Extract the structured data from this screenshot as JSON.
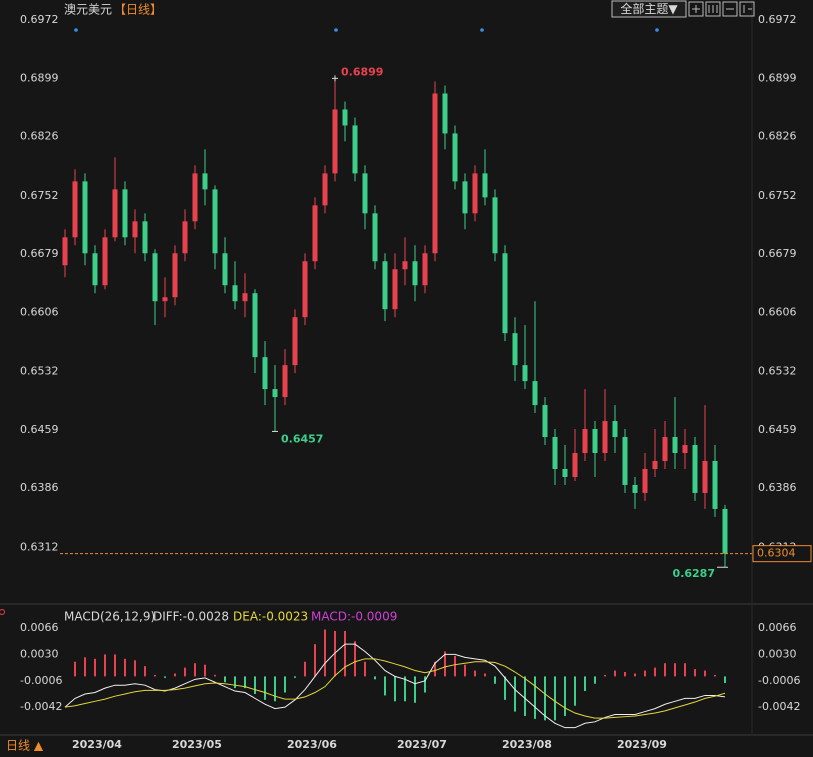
{
  "chart_data": [
    {
      "type": "candlestick",
      "title": "澳元美元",
      "period": "【日线】",
      "theme_button": "全部主题▼",
      "up_color": "#e8424f",
      "down_color": "#3ccf8a",
      "ylim": [
        0.6246,
        0.6972
      ],
      "yticks": [
        0.6972,
        0.6899,
        0.6826,
        {
          "value": 0.6752,
          "label": "0.6752"
        },
        0.6679,
        0.6606,
        0.6532,
        0.6459,
        0.6386,
        0.6312
      ],
      "candles": [
        [
          0.6665,
          0.671,
          0.665,
          0.67
        ],
        [
          0.67,
          0.6785,
          0.669,
          0.677
        ],
        [
          0.677,
          0.678,
          0.6665,
          0.668
        ],
        [
          0.668,
          0.669,
          0.663,
          0.664
        ],
        [
          0.664,
          0.671,
          0.6635,
          0.67
        ],
        [
          0.67,
          0.68,
          0.6695,
          0.676
        ],
        [
          0.676,
          0.677,
          0.669,
          0.67
        ],
        [
          0.67,
          0.6735,
          0.668,
          0.672
        ],
        [
          0.672,
          0.673,
          0.667,
          0.668
        ],
        [
          0.668,
          0.6685,
          0.659,
          0.662
        ],
        [
          0.662,
          0.665,
          0.66,
          0.6625
        ],
        [
          0.6625,
          0.669,
          0.6615,
          0.668
        ],
        [
          0.668,
          0.6735,
          0.667,
          0.672
        ],
        [
          0.672,
          0.679,
          0.671,
          0.678
        ],
        [
          0.678,
          0.681,
          0.674,
          0.676
        ],
        [
          0.676,
          0.6765,
          0.666,
          0.668
        ],
        [
          0.668,
          0.67,
          0.663,
          0.664
        ],
        [
          0.664,
          0.667,
          0.661,
          0.662
        ],
        [
          0.662,
          0.6655,
          0.66,
          0.663
        ],
        [
          0.663,
          0.6635,
          0.653,
          0.655
        ],
        [
          0.655,
          0.657,
          0.649,
          0.651
        ],
        [
          0.651,
          0.654,
          0.6457,
          0.65
        ],
        [
          0.65,
          0.656,
          0.649,
          0.654
        ],
        [
          0.654,
          0.661,
          0.653,
          0.66
        ],
        [
          0.66,
          0.668,
          0.659,
          0.667
        ],
        [
          0.667,
          0.675,
          0.666,
          0.674
        ],
        [
          0.674,
          0.679,
          0.673,
          0.678
        ],
        [
          0.678,
          0.6899,
          0.677,
          0.686
        ],
        [
          0.686,
          0.687,
          0.682,
          0.684
        ],
        [
          0.684,
          0.685,
          0.677,
          0.678
        ],
        [
          0.678,
          0.679,
          0.671,
          0.673
        ],
        [
          0.673,
          0.674,
          0.666,
          0.667
        ],
        [
          0.667,
          0.668,
          0.6595,
          0.661
        ],
        [
          0.661,
          0.668,
          0.66,
          0.666
        ],
        [
          0.666,
          0.67,
          0.664,
          0.667
        ],
        [
          0.667,
          0.669,
          0.662,
          0.664
        ],
        [
          0.664,
          0.669,
          0.663,
          0.668
        ],
        [
          0.668,
          0.6895,
          0.667,
          0.688
        ],
        [
          0.688,
          0.689,
          0.681,
          0.683
        ],
        [
          0.683,
          0.684,
          0.676,
          0.677
        ],
        [
          0.677,
          0.678,
          0.671,
          0.673
        ],
        [
          0.673,
          0.679,
          0.672,
          0.678
        ],
        [
          0.678,
          0.681,
          0.674,
          0.675
        ],
        [
          0.675,
          0.676,
          0.667,
          0.668
        ],
        [
          0.668,
          0.669,
          0.657,
          0.658
        ],
        [
          0.658,
          0.66,
          0.652,
          0.654
        ],
        [
          0.654,
          0.659,
          0.651,
          0.652
        ],
        [
          0.652,
          0.662,
          0.648,
          0.649
        ],
        [
          0.649,
          0.65,
          0.644,
          0.645
        ],
        [
          0.645,
          0.646,
          0.639,
          0.641
        ],
        [
          0.641,
          0.644,
          0.639,
          0.64
        ],
        [
          0.64,
          0.646,
          0.6395,
          0.643
        ],
        [
          0.643,
          0.651,
          0.642,
          0.646
        ],
        [
          0.646,
          0.647,
          0.64,
          0.643
        ],
        [
          0.643,
          0.651,
          0.642,
          0.647
        ],
        [
          0.647,
          0.649,
          0.643,
          0.645
        ],
        [
          0.645,
          0.646,
          0.638,
          0.639
        ],
        [
          0.639,
          0.64,
          0.636,
          0.638
        ],
        [
          0.638,
          0.643,
          0.637,
          0.641
        ],
        [
          0.641,
          0.646,
          0.64,
          0.642
        ],
        [
          0.642,
          0.647,
          0.641,
          0.645
        ],
        [
          0.645,
          0.65,
          0.641,
          0.643
        ],
        [
          0.643,
          0.646,
          0.641,
          0.644
        ],
        [
          0.644,
          0.645,
          0.637,
          0.638
        ],
        [
          0.638,
          0.649,
          0.636,
          0.642
        ],
        [
          0.642,
          0.644,
          0.635,
          0.636
        ],
        [
          0.636,
          0.6365,
          0.6287,
          0.6304
        ]
      ],
      "annotations": [
        {
          "index": 27,
          "value": 0.6899,
          "kind": "high"
        },
        {
          "index": 21,
          "value": 0.6457,
          "kind": "low"
        },
        {
          "index": 66,
          "value": 0.6287,
          "kind": "low"
        }
      ],
      "last_price": 0.6304,
      "last_price_color": "#f08c2c",
      "x_labels": [
        "2023/04",
        "2023/05",
        "2023/06",
        "2023/07",
        "2023/08",
        "2023/09"
      ],
      "bottom_tab": "日线 ▲"
    },
    {
      "type": "macd",
      "title": "MACD(26,12,9)",
      "legend_labels": [
        "DIFF:-0.0028",
        "DEA:-0.0023",
        "MACD:-0.0009"
      ],
      "diff_color": "#f0f0f0",
      "dea_color": "#e6d83a",
      "macd_color": "#d040d8",
      "up_color": "#e8424f",
      "down_color": "#3ccf8a",
      "ylim": [
        -0.008,
        0.0077
      ],
      "yticks": [
        0.0066,
        {
          "value": 0.003,
          "label": "0.0030"
        },
        -0.0006,
        -0.0042
      ],
      "diff": [
        -0.0042,
        -0.003,
        -0.0024,
        -0.0022,
        -0.0016,
        -0.0012,
        -0.0012,
        -0.001,
        -0.0012,
        -0.0018,
        -0.002,
        -0.0016,
        -0.001,
        -0.0004,
        -0.0002,
        -0.0008,
        -0.0014,
        -0.002,
        -0.0022,
        -0.003,
        -0.0038,
        -0.0044,
        -0.0042,
        -0.0032,
        -0.0018,
        0.0,
        0.0018,
        0.0032,
        0.0044,
        0.0044,
        0.0034,
        0.0022,
        0.0008,
        0.0,
        -0.0004,
        -0.001,
        -0.0006,
        0.0018,
        0.003,
        0.003,
        0.0026,
        0.0024,
        0.0022,
        0.0014,
        -0.0002,
        -0.0018,
        -0.003,
        -0.0042,
        -0.0054,
        -0.0064,
        -0.007,
        -0.007,
        -0.0064,
        -0.0062,
        -0.0056,
        -0.0052,
        -0.0052,
        -0.0052,
        -0.0048,
        -0.0044,
        -0.0038,
        -0.0034,
        -0.003,
        -0.003,
        -0.0026,
        -0.0026,
        -0.0028
      ],
      "dea": [
        -0.0042,
        -0.004,
        -0.0037,
        -0.0034,
        -0.0031,
        -0.0027,
        -0.0024,
        -0.0021,
        -0.0019,
        -0.0019,
        -0.0019,
        -0.0018,
        -0.0016,
        -0.0013,
        -0.001,
        -0.0009,
        -0.001,
        -0.0012,
        -0.0014,
        -0.0018,
        -0.0022,
        -0.0027,
        -0.0031,
        -0.0031,
        -0.0028,
        -0.0022,
        -0.0014,
        0.0001,
        0.0013,
        0.002,
        0.0024,
        0.0024,
        0.0021,
        0.0017,
        0.0013,
        0.0008,
        0.0005,
        0.0008,
        0.0013,
        0.0016,
        0.0018,
        0.002,
        0.002,
        0.0019,
        0.0014,
        0.0006,
        -0.0003,
        -0.0013,
        -0.0024,
        -0.0034,
        -0.0043,
        -0.005,
        -0.0054,
        -0.0057,
        -0.0057,
        -0.0056,
        -0.0055,
        -0.0054,
        -0.0052,
        -0.005,
        -0.0047,
        -0.0043,
        -0.0039,
        -0.0035,
        -0.003,
        -0.0027,
        -0.0023
      ],
      "macd": [
        0.0,
        0.002,
        0.0026,
        0.0024,
        0.003,
        0.003,
        0.0024,
        0.0022,
        0.0014,
        0.0002,
        -0.0002,
        0.0004,
        0.0012,
        0.0018,
        0.0016,
        0.0002,
        -0.0008,
        -0.0016,
        -0.0016,
        -0.0024,
        -0.0032,
        -0.0034,
        -0.0022,
        -0.0002,
        0.002,
        0.0044,
        0.0064,
        0.0062,
        0.0062,
        0.0048,
        0.002,
        -0.0004,
        -0.0026,
        -0.0034,
        -0.0034,
        -0.0036,
        -0.0022,
        0.002,
        0.0034,
        0.0028,
        0.0016,
        0.0008,
        0.0004,
        -0.001,
        -0.0032,
        -0.0048,
        -0.0054,
        -0.0058,
        -0.006,
        -0.006,
        -0.0054,
        -0.004,
        -0.002,
        -0.001,
        0.0002,
        0.0008,
        0.0006,
        0.0004,
        0.0008,
        0.0012,
        0.0018,
        0.0018,
        0.0018,
        0.001,
        0.0008,
        0.0002,
        -0.0009
      ]
    }
  ]
}
